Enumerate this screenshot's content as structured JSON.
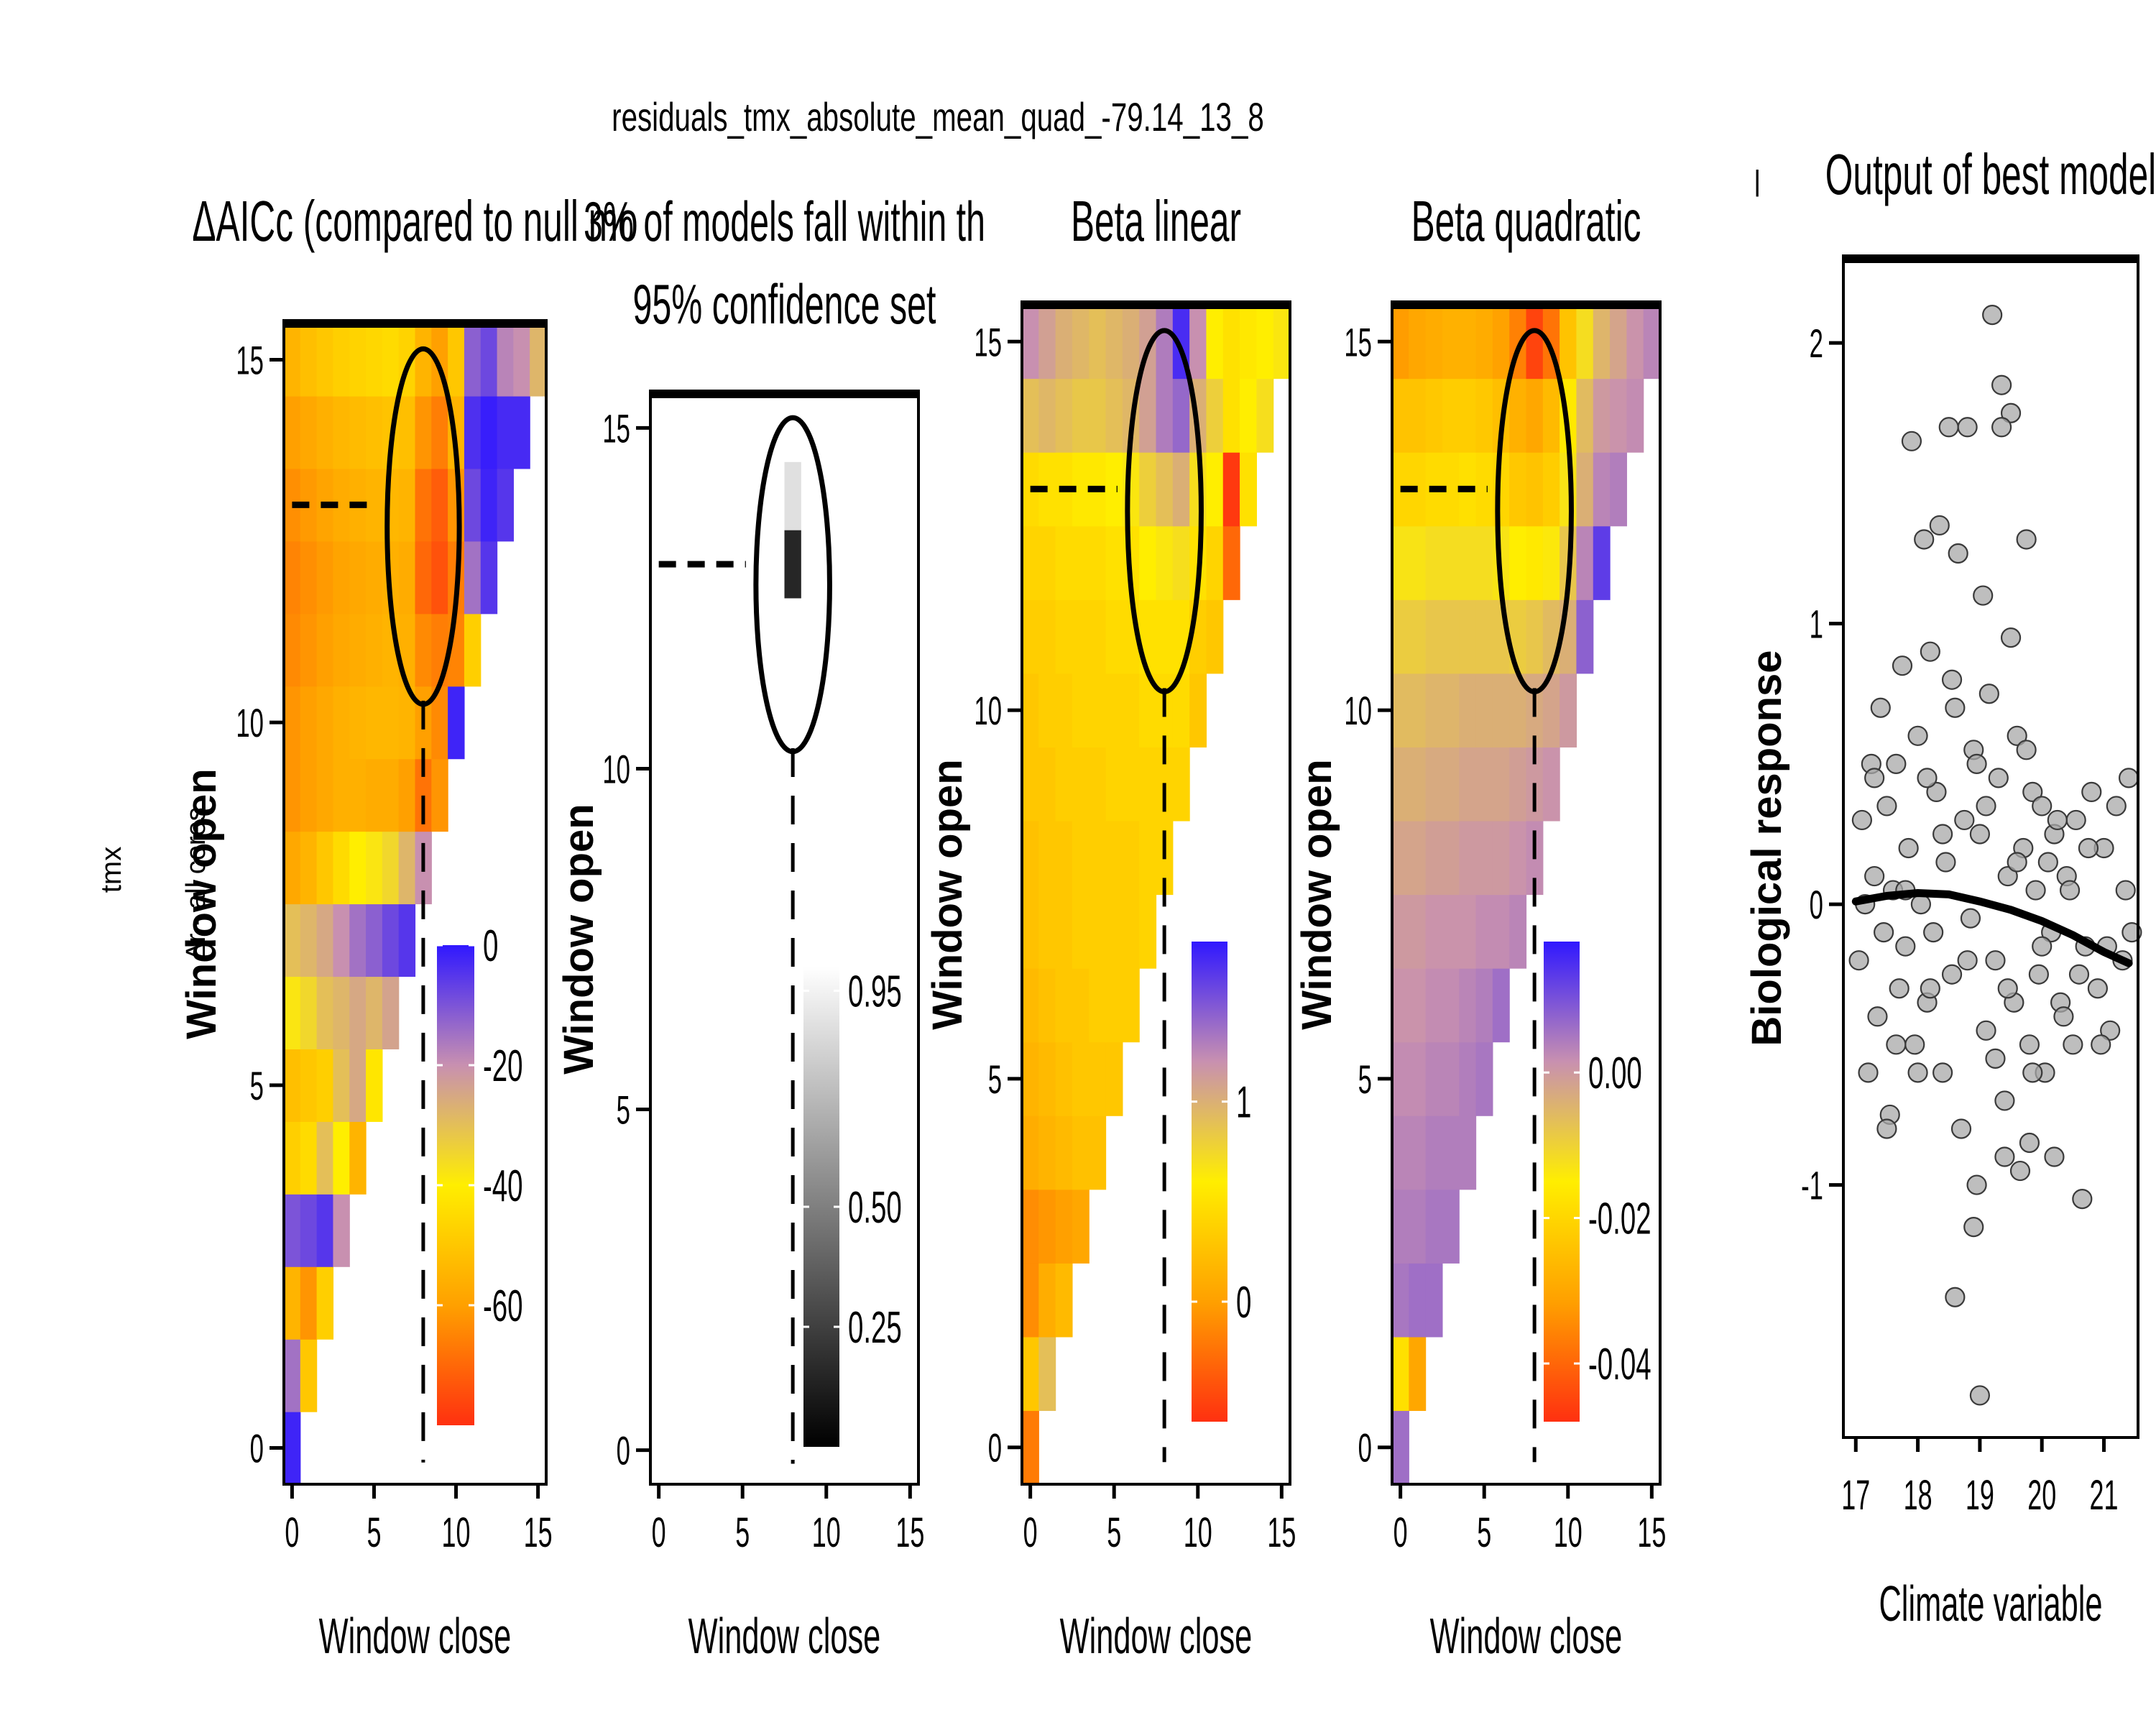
{
  "figure": {
    "main_title": "residuals_tmx_absolute_mean_quad_-79.14_13_8",
    "left_labels": {
      "outer": "tmx",
      "inner": "Δr - all cores"
    },
    "separator_glyph": "|"
  },
  "chart_data": [
    {
      "type": "heatmap",
      "panel": "delta-aicc",
      "title": "ΔAICc (compared to null mo",
      "xlabel": "Window close",
      "ylabel": "Window open",
      "xlim": [
        -0.5,
        15.5
      ],
      "ylim": [
        -0.5,
        15.5
      ],
      "x_ticks": [
        "0",
        "5",
        "10",
        "15"
      ],
      "y_ticks": [
        "0",
        "5",
        "10",
        "15"
      ],
      "best_window": {
        "open": 13,
        "close": 8
      },
      "legend": {
        "ticks": [
          "0",
          "-20",
          "-40",
          "-60"
        ],
        "tick_values": [
          0,
          -20,
          -40,
          -60
        ],
        "range": [
          -80,
          0
        ],
        "colors": [
          "#ff3010",
          "#ffa000",
          "#ffee00",
          "#c890b0",
          "#3018ff"
        ]
      },
      "rows": [
        [
          -2
        ],
        [
          -15,
          -50
        ],
        [
          -55,
          -62,
          -48
        ],
        [
          -10,
          -8,
          -5,
          -20
        ],
        [
          -48,
          -45,
          -30,
          -40,
          -55
        ],
        [
          -52,
          -50,
          -48,
          -30,
          -25,
          -42
        ],
        [
          -38,
          -35,
          -30,
          -28,
          -25,
          -28,
          -24
        ],
        [
          -30,
          -28,
          -25,
          -20,
          -15,
          -12,
          -8,
          -5
        ],
        [
          -58,
          -55,
          -50,
          -45,
          -40,
          -38,
          -35,
          -28,
          -20
        ],
        [
          -62,
          -60,
          -58,
          -56,
          -56,
          -57,
          -57,
          -60,
          -68,
          -62
        ],
        [
          -62,
          -60,
          -58,
          -56,
          -55,
          -54,
          -54,
          -55,
          -60,
          -64,
          -2
        ],
        [
          -64,
          -62,
          -60,
          -58,
          -57,
          -56,
          -55,
          -56,
          -64,
          -66,
          -65,
          -48
        ],
        [
          -65,
          -63,
          -61,
          -59,
          -58,
          -57,
          -56,
          -57,
          -70,
          -74,
          -66,
          -15,
          -5
        ],
        [
          -63,
          -61,
          -59,
          -57,
          -56,
          -55,
          -54,
          -55,
          -68,
          -72,
          -62,
          -8,
          -2,
          -5
        ],
        [
          -60,
          -58,
          -56,
          -54,
          -53,
          -52,
          -51,
          -52,
          -62,
          -66,
          -55,
          -4,
          -1,
          -3,
          -3
        ],
        [
          -55,
          -52,
          -50,
          -48,
          -47,
          -46,
          -45,
          -47,
          -55,
          -60,
          -50,
          -12,
          -8,
          -18,
          -20,
          -28
        ]
      ]
    },
    {
      "type": "heatmap",
      "panel": "confidence-set",
      "title_lines": [
        "3% of models fall within th",
        "95% confidence set"
      ],
      "xlabel": "Window close",
      "ylabel": "Window open",
      "xlim": [
        -0.5,
        15.5
      ],
      "ylim": [
        -0.5,
        15.5
      ],
      "x_ticks": [
        "0",
        "5",
        "10",
        "15"
      ],
      "y_ticks": [
        "0",
        "5",
        "10",
        "15"
      ],
      "best_window": {
        "open": 13,
        "close": 8
      },
      "legend": {
        "ticks": [
          "0.95",
          "0.50",
          "0.25"
        ],
        "tick_values": [
          0.95,
          0.5,
          0.25
        ],
        "range": [
          0,
          1
        ],
        "colors": [
          "#000000",
          "#ffffff"
        ]
      },
      "cells": [
        {
          "open": 13,
          "close": 8,
          "value": 0.15
        },
        {
          "open": 14,
          "close": 8,
          "value": 0.88
        }
      ]
    },
    {
      "type": "heatmap",
      "panel": "beta-linear",
      "title": "Beta linear",
      "xlabel": "Window close",
      "ylabel": "Window open",
      "xlim": [
        -0.5,
        15.5
      ],
      "ylim": [
        -0.5,
        15.5
      ],
      "x_ticks": [
        "0",
        "5",
        "10",
        "15"
      ],
      "y_ticks": [
        "0",
        "5",
        "10",
        "15"
      ],
      "best_window": {
        "open": 13,
        "close": 8
      },
      "legend": {
        "ticks": [
          "1",
          "0"
        ],
        "tick_values": [
          1,
          0
        ],
        "range": [
          -0.6,
          1.8
        ],
        "colors": [
          "#ff3010",
          "#ffa000",
          "#ffee00",
          "#c890b0",
          "#3018ff"
        ]
      },
      "rows": [
        [
          -0.2
        ],
        [
          0.3,
          0.9
        ],
        [
          -0.1,
          0.1,
          0.2
        ],
        [
          -0.1,
          -0.05,
          0.0,
          0.05
        ],
        [
          0.1,
          0.15,
          0.2,
          0.25,
          0.25
        ],
        [
          0.15,
          0.2,
          0.25,
          0.3,
          0.3,
          0.3
        ],
        [
          0.2,
          0.25,
          0.3,
          0.3,
          0.35,
          0.35,
          0.35
        ],
        [
          0.25,
          0.3,
          0.3,
          0.35,
          0.35,
          0.35,
          0.35,
          0.4
        ],
        [
          0.25,
          0.3,
          0.3,
          0.35,
          0.35,
          0.35,
          0.35,
          0.4,
          0.4
        ],
        [
          0.3,
          0.3,
          0.35,
          0.35,
          0.35,
          0.4,
          0.4,
          0.4,
          0.4,
          0.4
        ],
        [
          0.3,
          0.35,
          0.35,
          0.4,
          0.4,
          0.4,
          0.4,
          0.45,
          0.45,
          0.45,
          0.3
        ],
        [
          0.35,
          0.35,
          0.4,
          0.4,
          0.4,
          0.45,
          0.45,
          0.5,
          0.5,
          0.5,
          0.35,
          0.3
        ],
        [
          0.4,
          0.4,
          0.45,
          0.45,
          0.45,
          0.5,
          0.5,
          0.6,
          0.65,
          0.7,
          0.5,
          0.4,
          -0.3
        ],
        [
          0.45,
          0.5,
          0.5,
          0.55,
          0.55,
          0.6,
          0.65,
          0.8,
          0.9,
          1.0,
          0.7,
          0.6,
          -0.55,
          0.5
        ],
        [
          0.9,
          0.95,
          0.9,
          0.85,
          0.85,
          0.9,
          0.95,
          1.1,
          1.3,
          1.4,
          1.0,
          0.8,
          0.5,
          0.6,
          0.7
        ],
        [
          1.2,
          1.1,
          1.0,
          0.95,
          0.9,
          0.95,
          1.0,
          1.1,
          1.3,
          1.7,
          1.2,
          0.6,
          0.5,
          0.55,
          0.6,
          0.65
        ]
      ]
    },
    {
      "type": "heatmap",
      "panel": "beta-quadratic",
      "title": "Beta quadratic",
      "xlabel": "Window close",
      "ylabel": "Window open",
      "xlim": [
        -0.5,
        15.5
      ],
      "ylim": [
        -0.5,
        15.5
      ],
      "x_ticks": [
        "0",
        "5",
        "10",
        "15"
      ],
      "y_ticks": [
        "0",
        "5",
        "10",
        "15"
      ],
      "best_window": {
        "open": 13,
        "close": 8
      },
      "legend": {
        "ticks": [
          "0.00",
          "-0.02",
          "-0.04"
        ],
        "tick_values": [
          0.0,
          -0.02,
          -0.04
        ],
        "range": [
          -0.048,
          0.018
        ],
        "colors": [
          "#ff3010",
          "#ffa000",
          "#ffee00",
          "#c890b0",
          "#3018ff"
        ]
      },
      "rows": [
        [
          0.006
        ],
        [
          -0.018,
          -0.03
        ],
        [
          0.005,
          0.006,
          0.006
        ],
        [
          0.004,
          0.004,
          0.005,
          0.005
        ],
        [
          0.003,
          0.003,
          0.004,
          0.004,
          0.004
        ],
        [
          0.002,
          0.002,
          0.003,
          0.003,
          0.004,
          0.005
        ],
        [
          0.001,
          0.001,
          0.002,
          0.002,
          0.003,
          0.004,
          0.006
        ],
        [
          0.0,
          0.0,
          0.001,
          0.001,
          0.001,
          0.002,
          0.002,
          0.003
        ],
        [
          -0.002,
          -0.002,
          -0.001,
          -0.001,
          0.0,
          0.0,
          0.0,
          0.001,
          0.002
        ],
        [
          -0.004,
          -0.004,
          -0.003,
          -0.003,
          -0.002,
          -0.002,
          -0.002,
          -0.001,
          0.0,
          0.001
        ],
        [
          -0.006,
          -0.006,
          -0.005,
          -0.005,
          -0.004,
          -0.004,
          -0.004,
          -0.004,
          -0.003,
          -0.002,
          0.0
        ],
        [
          -0.009,
          -0.009,
          -0.008,
          -0.008,
          -0.008,
          -0.008,
          -0.008,
          -0.009,
          -0.008,
          -0.006,
          -0.004,
          0.008
        ],
        [
          -0.013,
          -0.013,
          -0.012,
          -0.012,
          -0.012,
          -0.012,
          -0.013,
          -0.015,
          -0.016,
          -0.014,
          -0.008,
          0.003,
          0.013
        ],
        [
          -0.02,
          -0.02,
          -0.019,
          -0.019,
          -0.018,
          -0.019,
          -0.02,
          -0.023,
          -0.024,
          -0.022,
          -0.013,
          -0.004,
          0.003,
          0.004
        ],
        [
          -0.024,
          -0.024,
          -0.023,
          -0.022,
          -0.022,
          -0.023,
          -0.025,
          -0.028,
          -0.03,
          -0.026,
          -0.016,
          -0.006,
          0.0,
          0.001,
          0.002
        ],
        [
          -0.032,
          -0.03,
          -0.029,
          -0.028,
          -0.028,
          -0.029,
          -0.031,
          -0.036,
          -0.045,
          -0.038,
          -0.024,
          -0.012,
          -0.005,
          -0.002,
          0.001,
          0.003
        ]
      ]
    },
    {
      "type": "scatter",
      "panel": "best-model",
      "title": "Output of best model",
      "xlabel": "Climate variable",
      "ylabel": "Biological response",
      "xlim": [
        16.8,
        21.55
      ],
      "ylim": [
        -1.9,
        2.3
      ],
      "x_ticks": [
        "17",
        "18",
        "19",
        "20",
        "21"
      ],
      "y_ticks": [
        "-1",
        "0",
        "1",
        "2"
      ],
      "points": [
        [
          17.05,
          -0.2
        ],
        [
          17.1,
          0.3
        ],
        [
          17.2,
          -0.6
        ],
        [
          17.25,
          0.5
        ],
        [
          17.3,
          0.1
        ],
        [
          17.35,
          -0.4
        ],
        [
          17.4,
          0.7
        ],
        [
          17.45,
          -0.1
        ],
        [
          17.5,
          0.35
        ],
        [
          17.55,
          -0.75
        ],
        [
          17.6,
          0.05
        ],
        [
          17.65,
          0.5
        ],
        [
          17.7,
          -0.3
        ],
        [
          17.75,
          0.85
        ],
        [
          17.8,
          -0.15
        ],
        [
          17.85,
          0.2
        ],
        [
          17.9,
          1.65
        ],
        [
          17.95,
          -0.5
        ],
        [
          18.0,
          0.6
        ],
        [
          18.05,
          0.0
        ],
        [
          18.1,
          1.3
        ],
        [
          18.15,
          -0.35
        ],
        [
          18.2,
          0.9
        ],
        [
          18.25,
          -0.1
        ],
        [
          18.3,
          0.4
        ],
        [
          18.35,
          1.35
        ],
        [
          18.4,
          -0.6
        ],
        [
          18.45,
          0.15
        ],
        [
          18.5,
          1.7
        ],
        [
          18.55,
          -0.25
        ],
        [
          18.6,
          0.7
        ],
        [
          18.65,
          1.25
        ],
        [
          18.7,
          -0.8
        ],
        [
          18.75,
          0.3
        ],
        [
          18.8,
          1.7
        ],
        [
          18.85,
          -0.05
        ],
        [
          18.9,
          0.55
        ],
        [
          18.95,
          -1.0
        ],
        [
          19.0,
          0.25
        ],
        [
          19.05,
          1.1
        ],
        [
          19.1,
          -0.45
        ],
        [
          19.15,
          0.75
        ],
        [
          19.2,
          2.1
        ],
        [
          19.25,
          -0.2
        ],
        [
          19.3,
          0.45
        ],
        [
          19.35,
          1.85
        ],
        [
          19.4,
          -0.7
        ],
        [
          19.45,
          0.1
        ],
        [
          19.5,
          0.95
        ],
        [
          19.55,
          -0.35
        ],
        [
          19.6,
          0.6
        ],
        [
          19.65,
          -0.95
        ],
        [
          19.7,
          0.2
        ],
        [
          19.75,
          1.3
        ],
        [
          19.8,
          -0.5
        ],
        [
          19.85,
          0.4
        ],
        [
          19.9,
          0.05
        ],
        [
          19.95,
          -0.25
        ],
        [
          20.0,
          0.35
        ],
        [
          20.05,
          -0.6
        ],
        [
          20.1,
          0.15
        ],
        [
          20.15,
          -0.1
        ],
        [
          20.2,
          0.25
        ],
        [
          20.3,
          -0.35
        ],
        [
          20.4,
          0.1
        ],
        [
          20.5,
          -0.5
        ],
        [
          20.55,
          0.3
        ],
        [
          20.65,
          -1.05
        ],
        [
          20.7,
          -0.15
        ],
        [
          20.8,
          0.4
        ],
        [
          20.9,
          -0.3
        ],
        [
          21.0,
          0.2
        ],
        [
          21.1,
          -0.45
        ],
        [
          21.2,
          0.35
        ],
        [
          21.3,
          -0.2
        ],
        [
          21.4,
          0.45
        ],
        [
          21.45,
          -0.1
        ],
        [
          18.6,
          -1.4
        ],
        [
          18.9,
          -1.15
        ],
        [
          19.0,
          -1.75
        ],
        [
          19.4,
          -0.9
        ],
        [
          19.5,
          1.75
        ],
        [
          19.35,
          1.7
        ],
        [
          18.0,
          -0.6
        ],
        [
          17.5,
          -0.8
        ],
        [
          19.8,
          -0.85
        ],
        [
          20.2,
          -0.9
        ],
        [
          17.3,
          0.45
        ],
        [
          18.4,
          0.25
        ],
        [
          18.8,
          -0.2
        ],
        [
          19.1,
          0.35
        ],
        [
          19.6,
          0.15
        ],
        [
          20.0,
          -0.15
        ],
        [
          20.45,
          0.05
        ],
        [
          17.8,
          0.05
        ],
        [
          18.2,
          -0.3
        ],
        [
          19.25,
          -0.55
        ],
        [
          19.75,
          0.55
        ],
        [
          20.35,
          -0.4
        ],
        [
          20.75,
          0.2
        ],
        [
          21.05,
          -0.15
        ],
        [
          21.35,
          0.05
        ],
        [
          17.15,
          0.0
        ],
        [
          17.65,
          -0.5
        ],
        [
          18.15,
          0.45
        ],
        [
          18.55,
          0.8
        ],
        [
          18.95,
          0.5
        ],
        [
          19.45,
          -0.3
        ],
        [
          19.85,
          -0.6
        ],
        [
          20.25,
          0.3
        ],
        [
          20.6,
          -0.25
        ],
        [
          20.95,
          -0.5
        ]
      ],
      "fit_line": {
        "x": [
          17.0,
          17.5,
          18.0,
          18.5,
          19.0,
          19.5,
          20.0,
          20.5,
          21.0,
          21.4
        ],
        "y": [
          0.01,
          0.03,
          0.04,
          0.035,
          0.01,
          -0.02,
          -0.06,
          -0.11,
          -0.17,
          -0.21
        ]
      }
    }
  ]
}
